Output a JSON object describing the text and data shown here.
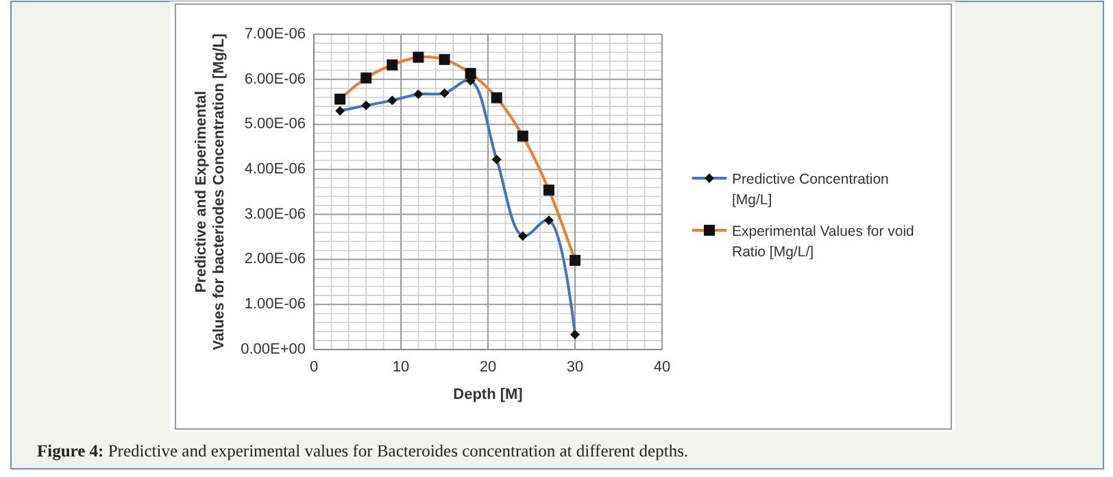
{
  "chart_data": {
    "type": "line",
    "xlabel": "Depth [M]",
    "ylabel": "Predictive and Experimental Values for bacteriodes Concentration [Mg/L]",
    "annotations": [
      "Figure 4: Predictive and experimental values for Bacteroides concentration at different depths."
    ],
    "x": [
      3,
      6,
      9,
      12,
      15,
      18,
      21,
      24,
      27,
      30
    ],
    "series": [
      {
        "name": "Predictive Concentration [Mg/L]",
        "color": "#4472c4",
        "marker": "diamond",
        "values": [
          5.3e-06,
          5.42e-06,
          5.53e-06,
          5.67e-06,
          5.69e-06,
          5.97e-06,
          4.22e-06,
          2.52e-06,
          2.87e-06,
          3.3e-07
        ]
      },
      {
        "name": "Experimental Values for void Ratio [Mg/L/]",
        "color": "#ed7d31",
        "marker": "square",
        "values": [
          5.56e-06,
          6.03e-06,
          6.32e-06,
          6.49e-06,
          6.44e-06,
          6.13e-06,
          5.59e-06,
          4.74e-06,
          3.54e-06,
          1.98e-06
        ]
      }
    ],
    "xlim": [
      0,
      40
    ],
    "xticks": [
      0,
      10,
      20,
      30,
      40
    ],
    "ylim": [
      0,
      7e-06
    ],
    "yticks": [
      {
        "value": 0,
        "label": "0.00E+00"
      },
      {
        "value": 1e-06,
        "label": "1.00E-06"
      },
      {
        "value": 2e-06,
        "label": "2.00E-06"
      },
      {
        "value": 3e-06,
        "label": "3.00E-06"
      },
      {
        "value": 4e-06,
        "label": "4.00E-06"
      },
      {
        "value": 5e-06,
        "label": "5.00E-06"
      },
      {
        "value": 6e-06,
        "label": "6.00E-06"
      },
      {
        "value": 7e-06,
        "label": "7.00E-06"
      }
    ],
    "grid": true,
    "legend": "right",
    "line_style": "solid"
  }
}
